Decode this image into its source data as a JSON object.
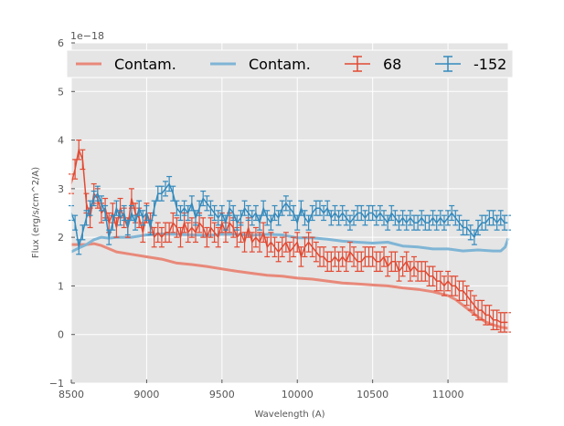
{
  "chart_data": {
    "type": "line",
    "xlabel": "Wavelength (A)",
    "ylabel": "Flux (erg/s/cm^2/A)",
    "offset_label": "1e−18",
    "xlim": [
      8500,
      11400
    ],
    "ylim": [
      -1,
      6
    ],
    "xticks": [
      8500,
      9000,
      9500,
      10000,
      10500,
      11000
    ],
    "yticks": [
      -1,
      0,
      1,
      2,
      3,
      4,
      5,
      6
    ],
    "grid": true,
    "legend": "top",
    "colors": {
      "red": "#E24A33",
      "blue": "#348ABD",
      "red_light": "#E8897A",
      "blue_light": "#7FB5D5",
      "background": "#E5E5E5"
    },
    "contam_series": [
      {
        "name": "Contam.",
        "color": "red_light",
        "x": [
          8500,
          8600,
          8650,
          8700,
          8800,
          8900,
          9000,
          9100,
          9200,
          9300,
          9400,
          9500,
          9600,
          9700,
          9800,
          9900,
          10000,
          10100,
          10200,
          10300,
          10400,
          10500,
          10600,
          10700,
          10800,
          10900,
          11000,
          11050,
          11100,
          11150,
          11200,
          11250,
          11300,
          11350,
          11400
        ],
        "y": [
          1.85,
          1.85,
          1.87,
          1.83,
          1.7,
          1.65,
          1.6,
          1.55,
          1.47,
          1.44,
          1.4,
          1.35,
          1.3,
          1.26,
          1.22,
          1.2,
          1.16,
          1.14,
          1.1,
          1.06,
          1.04,
          1.02,
          1.0,
          0.96,
          0.93,
          0.88,
          0.8,
          0.72,
          0.6,
          0.48,
          0.36,
          0.26,
          0.2,
          0.15,
          0.13
        ]
      },
      {
        "name": "Contam.",
        "color": "blue_light",
        "x": [
          8500,
          8550,
          8600,
          8650,
          8700,
          8750,
          8800,
          8900,
          9000,
          9100,
          9200,
          9300,
          9400,
          9500,
          9600,
          9700,
          9800,
          9900,
          10000,
          10100,
          10200,
          10300,
          10400,
          10500,
          10600,
          10700,
          10800,
          10900,
          11000,
          11100,
          11200,
          11300,
          11350,
          11380,
          11400
        ],
        "y": [
          1.7,
          1.78,
          1.85,
          1.95,
          2.0,
          1.98,
          2.0,
          2.0,
          2.05,
          2.07,
          2.06,
          2.05,
          2.04,
          2.06,
          2.06,
          2.04,
          2.06,
          2.05,
          1.99,
          1.99,
          1.96,
          1.92,
          1.9,
          1.88,
          1.9,
          1.82,
          1.8,
          1.76,
          1.76,
          1.72,
          1.74,
          1.72,
          1.72,
          1.8,
          1.98
        ]
      }
    ],
    "errorbar_series": [
      {
        "name": "68",
        "color": "red",
        "x": [
          8500,
          8525,
          8550,
          8575,
          8600,
          8625,
          8650,
          8675,
          8700,
          8725,
          8750,
          8775,
          8800,
          8825,
          8850,
          8875,
          8900,
          8925,
          8950,
          8975,
          9000,
          9025,
          9050,
          9075,
          9100,
          9125,
          9150,
          9175,
          9200,
          9225,
          9250,
          9275,
          9300,
          9325,
          9350,
          9375,
          9400,
          9425,
          9450,
          9475,
          9500,
          9525,
          9550,
          9575,
          9600,
          9625,
          9650,
          9675,
          9700,
          9725,
          9750,
          9775,
          9800,
          9825,
          9850,
          9875,
          9900,
          9925,
          9950,
          9975,
          10000,
          10025,
          10050,
          10075,
          10100,
          10125,
          10150,
          10175,
          10200,
          10225,
          10250,
          10275,
          10300,
          10325,
          10350,
          10375,
          10400,
          10425,
          10450,
          10475,
          10500,
          10525,
          10550,
          10575,
          10600,
          10625,
          10650,
          10675,
          10700,
          10725,
          10750,
          10775,
          10800,
          10825,
          10850,
          10875,
          10900,
          10925,
          10950,
          10975,
          11000,
          11025,
          11050,
          11075,
          11100,
          11125,
          11150,
          11175,
          11200,
          11225,
          11250,
          11275,
          11300,
          11325,
          11350,
          11375,
          11400
        ],
        "y": [
          3.1,
          3.4,
          3.8,
          3.6,
          2.7,
          2.4,
          2.9,
          2.8,
          2.5,
          2.6,
          2.3,
          2.5,
          2.2,
          2.6,
          2.4,
          2.2,
          2.8,
          2.5,
          2.4,
          2.1,
          2.5,
          2.3,
          2.0,
          2.1,
          2.0,
          2.1,
          2.1,
          2.3,
          2.2,
          2.0,
          2.3,
          2.1,
          2.2,
          2.1,
          2.3,
          2.2,
          2.0,
          2.2,
          2.1,
          2.0,
          2.3,
          2.1,
          2.3,
          2.2,
          2.0,
          2.1,
          1.9,
          2.2,
          1.9,
          2.0,
          1.9,
          2.1,
          1.8,
          1.9,
          1.8,
          1.7,
          1.8,
          1.9,
          1.7,
          1.8,
          1.9,
          1.6,
          1.8,
          1.9,
          1.8,
          1.7,
          1.6,
          1.6,
          1.5,
          1.5,
          1.6,
          1.5,
          1.6,
          1.5,
          1.7,
          1.6,
          1.5,
          1.5,
          1.6,
          1.6,
          1.6,
          1.5,
          1.5,
          1.6,
          1.4,
          1.5,
          1.5,
          1.3,
          1.4,
          1.5,
          1.3,
          1.4,
          1.3,
          1.3,
          1.3,
          1.2,
          1.2,
          1.1,
          1.1,
          1.0,
          1.1,
          1.0,
          1.0,
          0.9,
          0.9,
          0.8,
          0.7,
          0.6,
          0.5,
          0.5,
          0.4,
          0.4,
          0.3,
          0.3,
          0.25,
          0.25,
          0.25
        ],
        "err": 0.2
      },
      {
        "name": "-152",
        "color": "blue",
        "x": [
          8500,
          8525,
          8550,
          8575,
          8600,
          8625,
          8650,
          8675,
          8700,
          8725,
          8750,
          8775,
          8800,
          8825,
          8850,
          8875,
          8900,
          8925,
          8950,
          8975,
          9000,
          9025,
          9050,
          9075,
          9100,
          9125,
          9150,
          9175,
          9200,
          9225,
          9250,
          9275,
          9300,
          9325,
          9350,
          9375,
          9400,
          9425,
          9450,
          9475,
          9500,
          9525,
          9550,
          9575,
          9600,
          9625,
          9650,
          9675,
          9700,
          9725,
          9750,
          9775,
          9800,
          9825,
          9850,
          9875,
          9900,
          9925,
          9950,
          9975,
          10000,
          10025,
          10050,
          10075,
          10100,
          10125,
          10150,
          10175,
          10200,
          10225,
          10250,
          10275,
          10300,
          10325,
          10350,
          10375,
          10400,
          10425,
          10450,
          10475,
          10500,
          10525,
          10550,
          10575,
          10600,
          10625,
          10650,
          10675,
          10700,
          10725,
          10750,
          10775,
          10800,
          10825,
          10850,
          10875,
          10900,
          10925,
          10950,
          10975,
          11000,
          11025,
          11050,
          11075,
          11100,
          11125,
          11150,
          11175,
          11200,
          11225,
          11250,
          11275,
          11300,
          11325,
          11350,
          11375,
          11400
        ],
        "y": [
          2.5,
          2.3,
          1.8,
          2.1,
          2.4,
          2.6,
          2.8,
          2.9,
          2.7,
          2.5,
          2.0,
          2.3,
          2.6,
          2.4,
          2.5,
          2.2,
          2.5,
          2.3,
          2.6,
          2.4,
          2.5,
          2.2,
          2.6,
          2.9,
          2.9,
          3.0,
          3.1,
          2.9,
          2.6,
          2.5,
          2.6,
          2.5,
          2.7,
          2.4,
          2.6,
          2.8,
          2.7,
          2.6,
          2.5,
          2.4,
          2.5,
          2.3,
          2.6,
          2.5,
          2.3,
          2.4,
          2.6,
          2.5,
          2.4,
          2.5,
          2.3,
          2.6,
          2.4,
          2.3,
          2.5,
          2.4,
          2.6,
          2.7,
          2.6,
          2.5,
          2.3,
          2.6,
          2.4,
          2.3,
          2.5,
          2.6,
          2.6,
          2.5,
          2.6,
          2.4,
          2.5,
          2.4,
          2.5,
          2.4,
          2.3,
          2.4,
          2.5,
          2.5,
          2.4,
          2.5,
          2.5,
          2.4,
          2.5,
          2.4,
          2.3,
          2.5,
          2.4,
          2.3,
          2.4,
          2.3,
          2.4,
          2.3,
          2.3,
          2.4,
          2.3,
          2.3,
          2.4,
          2.3,
          2.4,
          2.3,
          2.4,
          2.5,
          2.4,
          2.3,
          2.2,
          2.2,
          2.1,
          2.0,
          2.2,
          2.3,
          2.3,
          2.4,
          2.4,
          2.3,
          2.4,
          2.3,
          2.3
        ],
        "err": 0.15
      }
    ]
  }
}
